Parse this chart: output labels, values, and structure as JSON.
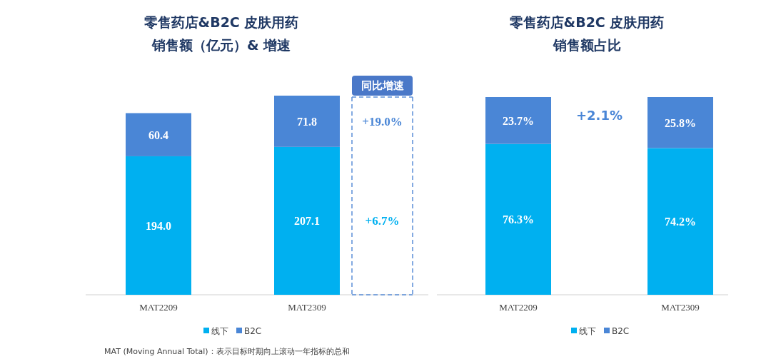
{
  "chart_data": [
    {
      "type": "bar",
      "stacked": true,
      "title": "零售药店&B2C 皮肤用药",
      "subtitle": "销售额（亿元）& 增速",
      "categories": [
        "MAT2209",
        "MAT2309"
      ],
      "legend": "bottom",
      "series": [
        {
          "name": "线下",
          "color": "#00b0f0",
          "values": [
            194.0,
            207.1
          ],
          "value_labels": [
            "194.0",
            "207.1"
          ]
        },
        {
          "name": "B2C",
          "color": "#4a86d6",
          "values": [
            60.4,
            71.8
          ],
          "value_labels": [
            "60.4",
            "71.8"
          ]
        }
      ],
      "annotations": [
        "同比增速",
        "+6.7%",
        "+19.0%",
        "MAT (Moving Annual Total)：表示目标时期向上滚动一年指标的总和"
      ]
    },
    {
      "type": "bar",
      "stacked": true,
      "title": "零售药店&B2C 皮肤用药",
      "subtitle": "销售额占比",
      "categories": [
        "MAT2209",
        "MAT2309"
      ],
      "legend": "bottom",
      "series": [
        {
          "name": "线下",
          "color": "#00b0f0",
          "values": [
            76.3,
            74.2
          ],
          "value_labels": [
            "76.3%",
            "74.2%"
          ]
        },
        {
          "name": "B2C",
          "color": "#4a86d6",
          "values": [
            23.7,
            25.8
          ],
          "value_labels": [
            "23.7%",
            "25.8%"
          ]
        }
      ],
      "annotations": [
        "+2.1%"
      ]
    }
  ]
}
